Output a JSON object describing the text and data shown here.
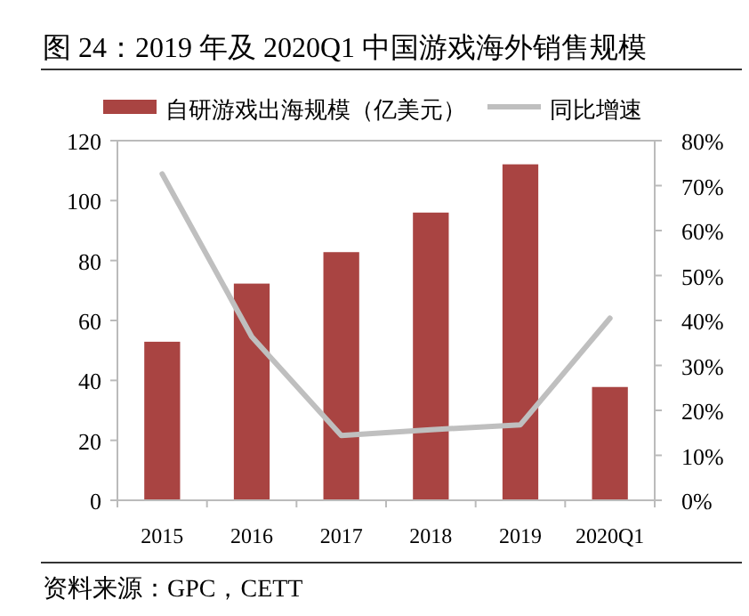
{
  "chart_data": {
    "type": "bar",
    "title": "图 24：2019 年及 2020Q1 中国游戏海外销售规模",
    "categories": [
      "2015",
      "2016",
      "2017",
      "2018",
      "2019",
      "2020Q1"
    ],
    "series": [
      {
        "name": "自研游戏出海规模（亿美元）",
        "color": "#a94442",
        "values": [
          52.9,
          72.3,
          82.8,
          96.0,
          112.1,
          37.8
        ]
      },
      {
        "name": "同比增速",
        "type": "line",
        "axis": "y2",
        "color": "#bfbfbf",
        "values": [
          72.6,
          36.4,
          14.4,
          15.7,
          16.8,
          40.5
        ]
      }
    ],
    "ylim": [
      0,
      120
    ],
    "yticks": [
      0,
      20,
      40,
      60,
      80,
      100,
      120
    ],
    "y2lim": [
      0,
      80
    ],
    "y2ticks": [
      {
        "value": 0,
        "label": "0%"
      },
      {
        "value": 10,
        "label": "10%"
      },
      {
        "value": 20,
        "label": "20%"
      },
      {
        "value": 30,
        "label": "30%"
      },
      {
        "value": 40,
        "label": "40%"
      },
      {
        "value": 50,
        "label": "50%"
      },
      {
        "value": 60,
        "label": "60%"
      },
      {
        "value": 70,
        "label": "70%"
      },
      {
        "value": 80,
        "label": "80%"
      }
    ],
    "legend": "top",
    "grid": false,
    "marker": "none",
    "line_style": "solid",
    "annotations": [
      "资料来源：GPC，CETT"
    ]
  }
}
